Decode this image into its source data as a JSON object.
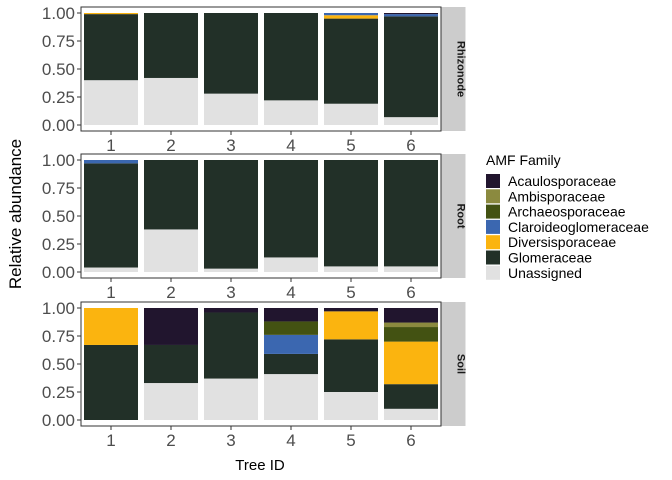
{
  "chart_data": {
    "type": "bar",
    "stacked": true,
    "xlabel": "Tree ID",
    "ylabel": "Relative abundance",
    "ylim": [
      0,
      1
    ],
    "yticks": [
      "0.00",
      "0.25",
      "0.50",
      "0.75",
      "1.00"
    ],
    "categories": [
      "1",
      "2",
      "3",
      "4",
      "5",
      "6"
    ],
    "legend": {
      "title": "AMF Family",
      "position": "right",
      "entries": [
        {
          "name": "Acaulosporaceae",
          "color": "#21152e"
        },
        {
          "name": "Ambisporaceae",
          "color": "#8b8a3f"
        },
        {
          "name": "Archaeosporaceae",
          "color": "#435212"
        },
        {
          "name": "Claroideoglomeraceae",
          "color": "#3b67b0"
        },
        {
          "name": "Diversisporaceae",
          "color": "#fbb40f"
        },
        {
          "name": "Glomeraceae",
          "color": "#223028"
        },
        {
          "name": "Unassigned",
          "color": "#e1e1e1"
        }
      ]
    },
    "stack_order_bottom_to_top": [
      "Unassigned",
      "Glomeraceae",
      "Diversisporaceae",
      "Claroideoglomeraceae",
      "Archaeosporaceae",
      "Ambisporaceae",
      "Acaulosporaceae"
    ],
    "panels": [
      {
        "strip": "Rhizonode",
        "series": [
          {
            "name": "Unassigned",
            "values": [
              0.4,
              0.42,
              0.28,
              0.22,
              0.19,
              0.07
            ]
          },
          {
            "name": "Glomeraceae",
            "values": [
              0.59,
              0.58,
              0.72,
              0.78,
              0.76,
              0.9
            ]
          },
          {
            "name": "Diversisporaceae",
            "values": [
              0.01,
              0.0,
              0.0,
              0.0,
              0.03,
              0.0
            ]
          },
          {
            "name": "Claroideoglomeraceae",
            "values": [
              0.0,
              0.0,
              0.0,
              0.0,
              0.02,
              0.02
            ]
          },
          {
            "name": "Archaeosporaceae",
            "values": [
              0.0,
              0.0,
              0.0,
              0.0,
              0.0,
              0.0
            ]
          },
          {
            "name": "Ambisporaceae",
            "values": [
              0.0,
              0.0,
              0.0,
              0.0,
              0.0,
              0.0
            ]
          },
          {
            "name": "Acaulosporaceae",
            "values": [
              0.0,
              0.0,
              0.0,
              0.0,
              0.0,
              0.01
            ]
          }
        ]
      },
      {
        "strip": "Root",
        "series": [
          {
            "name": "Unassigned",
            "values": [
              0.04,
              0.38,
              0.03,
              0.13,
              0.05,
              0.05
            ]
          },
          {
            "name": "Glomeraceae",
            "values": [
              0.93,
              0.62,
              0.97,
              0.87,
              0.95,
              0.95
            ]
          },
          {
            "name": "Diversisporaceae",
            "values": [
              0.0,
              0.0,
              0.0,
              0.0,
              0.0,
              0.0
            ]
          },
          {
            "name": "Claroideoglomeraceae",
            "values": [
              0.03,
              0.0,
              0.0,
              0.0,
              0.0,
              0.0
            ]
          },
          {
            "name": "Archaeosporaceae",
            "values": [
              0.0,
              0.0,
              0.0,
              0.0,
              0.0,
              0.0
            ]
          },
          {
            "name": "Ambisporaceae",
            "values": [
              0.0,
              0.0,
              0.0,
              0.0,
              0.0,
              0.0
            ]
          },
          {
            "name": "Acaulosporaceae",
            "values": [
              0.0,
              0.0,
              0.0,
              0.0,
              0.0,
              0.0
            ]
          }
        ]
      },
      {
        "strip": "Soil",
        "series": [
          {
            "name": "Unassigned",
            "values": [
              0.0,
              0.33,
              0.37,
              0.41,
              0.25,
              0.1
            ]
          },
          {
            "name": "Glomeraceae",
            "values": [
              0.67,
              0.34,
              0.59,
              0.18,
              0.47,
              0.22
            ]
          },
          {
            "name": "Diversisporaceae",
            "values": [
              0.33,
              0.0,
              0.0,
              0.0,
              0.25,
              0.38
            ]
          },
          {
            "name": "Claroideoglomeraceae",
            "values": [
              0.0,
              0.0,
              0.0,
              0.17,
              0.0,
              0.0
            ]
          },
          {
            "name": "Archaeosporaceae",
            "values": [
              0.0,
              0.0,
              0.0,
              0.12,
              0.0,
              0.13
            ]
          },
          {
            "name": "Ambisporaceae",
            "values": [
              0.0,
              0.0,
              0.0,
              0.0,
              0.0,
              0.04
            ]
          },
          {
            "name": "Acaulosporaceae",
            "values": [
              0.0,
              0.33,
              0.04,
              0.12,
              0.03,
              0.13
            ]
          }
        ]
      }
    ]
  }
}
